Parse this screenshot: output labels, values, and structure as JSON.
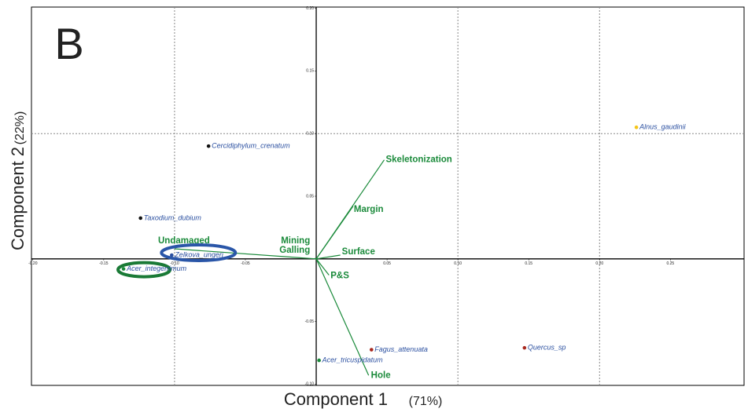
{
  "chart_data": {
    "type": "scatter",
    "panel_label": "B",
    "x_label": "Component 1",
    "x_label_note": "(71%)",
    "y_label": "Component 2",
    "y_label_note": "(22%)",
    "xlim": [
      -0.201,
      0.302
    ],
    "ylim": [
      -0.101,
      0.201
    ],
    "xticks": [
      {
        "value": -0.2,
        "label": "-0.20"
      },
      {
        "value": -0.15,
        "label": "-0.15"
      },
      {
        "value": -0.1,
        "label": "-0.10"
      },
      {
        "value": -0.05,
        "label": "-0.05"
      },
      {
        "value": 0.05,
        "label": "0.05"
      },
      {
        "value": 0.1,
        "label": "0.10"
      },
      {
        "value": 0.15,
        "label": "0.15"
      },
      {
        "value": 0.2,
        "label": "0.20"
      },
      {
        "value": 0.25,
        "label": "0.25"
      }
    ],
    "yticks": [
      {
        "value": -0.1,
        "label": "-0.10"
      },
      {
        "value": -0.05,
        "label": "-0.05"
      },
      {
        "value": 0.05,
        "label": "0.05"
      },
      {
        "value": 0.1,
        "label": "0.10"
      },
      {
        "value": 0.15,
        "label": "0.15"
      },
      {
        "value": 0.2,
        "label": "0.20"
      }
    ],
    "xgrid": [
      -0.1,
      0.1,
      0.2
    ],
    "ygrid": [
      0.1
    ],
    "points": {
      "names": [
        "Alnus_gaudinii",
        "Cercidiphylum_crenatum",
        "Taxodium_dubium",
        "Zelkova_ungeri",
        "Acer_integerrimum",
        "Acer_tricuspidatum",
        "Fagus_attenuata",
        "Quercus_sp"
      ],
      "x": [
        0.226,
        -0.076,
        -0.124,
        -0.102,
        -0.136,
        0.002,
        0.039,
        0.147
      ],
      "y": [
        0.105,
        0.09,
        0.0325,
        0.003,
        -0.008,
        -0.081,
        -0.0725,
        -0.071
      ],
      "colors": [
        "#f5c518",
        "#111111",
        "#111111",
        "#2a4fa0",
        "#1a8a3a",
        "#1a8a3a",
        "#a8281e",
        "#a8281e"
      ]
    },
    "vectors": {
      "names": [
        "Skeletonization",
        "Margin",
        "Surface",
        "P&S",
        "Hole",
        "Undamaged",
        "Mining",
        "Galling"
      ],
      "x": [
        0.048,
        0.026,
        0.017,
        0.009,
        0.037,
        -0.1,
        -0.001,
        -0.001
      ],
      "y": [
        0.079,
        0.042,
        0.003,
        -0.013,
        -0.093,
        0.008,
        0.0005,
        0
      ],
      "color": "#1a8a3a"
    }
  }
}
